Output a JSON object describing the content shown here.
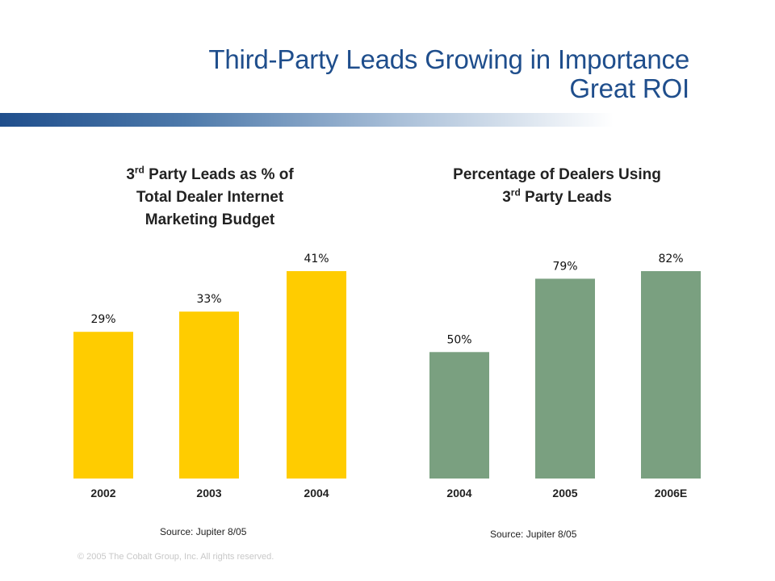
{
  "slide": {
    "title_line1": "Third-Party Leads Growing in Importance",
    "title_line2": "Great ROI",
    "copyright": "© 2005 The Cobalt Group, Inc. All rights reserved."
  },
  "chart_data": [
    {
      "type": "bar",
      "title_parts": [
        "3",
        "rd",
        " Party Leads as % of",
        "Total Dealer Internet",
        "Marketing Budget"
      ],
      "categories": [
        "2002",
        "2003",
        "2004"
      ],
      "values": [
        29,
        33,
        41
      ],
      "labels": [
        "29%",
        "33%",
        "41%"
      ],
      "ylim": [
        0,
        41
      ],
      "color": "#ffcc00",
      "source": "Source: Jupiter 8/05"
    },
    {
      "type": "bar",
      "title_parts": [
        "Percentage of Dealers Using",
        "3",
        "rd",
        " Party Leads"
      ],
      "categories": [
        "2004",
        "2005",
        "2006E"
      ],
      "values": [
        50,
        79,
        82
      ],
      "labels": [
        "50%",
        "79%",
        "82%"
      ],
      "ylim": [
        0,
        82
      ],
      "color": "#7aa080",
      "source": "Source: Jupiter 8/05"
    }
  ]
}
